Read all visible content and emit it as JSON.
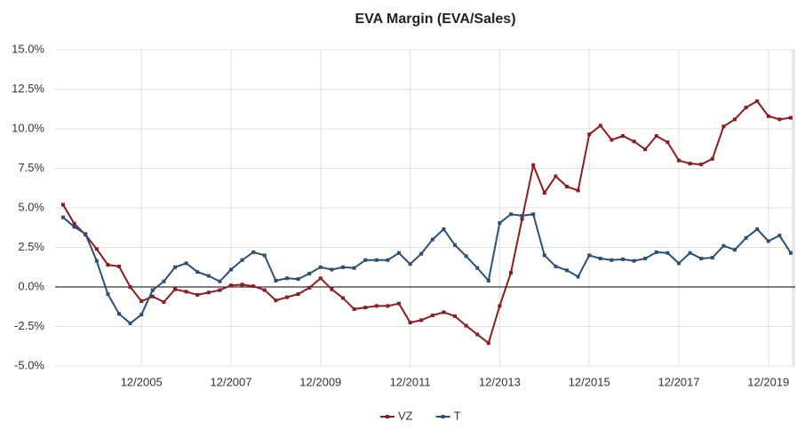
{
  "chart_data": {
    "type": "line",
    "title": "EVA Margin (EVA/Sales)",
    "categories": [
      null,
      null,
      null,
      null,
      null,
      null,
      null,
      "12/2005",
      null,
      null,
      null,
      null,
      null,
      null,
      null,
      "12/2007",
      null,
      null,
      null,
      null,
      null,
      null,
      null,
      "12/2009",
      null,
      null,
      null,
      null,
      null,
      null,
      null,
      "12/2011",
      null,
      null,
      null,
      null,
      null,
      null,
      null,
      "12/2013",
      null,
      null,
      null,
      null,
      null,
      null,
      null,
      "12/2015",
      null,
      null,
      null,
      null,
      null,
      null,
      null,
      "12/2017",
      null,
      null,
      null,
      null,
      null,
      null,
      null,
      "12/2019",
      null,
      null
    ],
    "series": [
      {
        "name": "VZ",
        "color": "#8c1c1f",
        "values": [
          5.2,
          4.0,
          3.3,
          2.4,
          1.4,
          1.3,
          0.0,
          -0.9,
          -0.6,
          -0.95,
          -0.15,
          -0.3,
          -0.5,
          -0.35,
          -0.2,
          0.1,
          0.15,
          0.05,
          -0.2,
          -0.85,
          -0.65,
          -0.45,
          -0.05,
          0.55,
          -0.15,
          -0.7,
          -1.4,
          -1.3,
          -1.2,
          -1.2,
          -1.05,
          -2.25,
          -2.1,
          -1.8,
          -1.6,
          -1.85,
          -2.45,
          -3.0,
          -3.55,
          -1.2,
          0.9,
          4.3,
          7.7,
          5.95,
          7.0,
          6.35,
          6.1,
          9.65,
          10.2,
          9.3,
          9.55,
          9.2,
          8.7,
          9.55,
          9.15,
          8.0,
          7.8,
          7.75,
          8.1,
          10.15,
          10.6,
          11.35,
          11.75,
          10.8,
          10.6,
          10.7
        ]
      },
      {
        "name": "T",
        "color": "#2b4f77",
        "values": [
          4.4,
          3.8,
          3.35,
          1.65,
          -0.45,
          -1.7,
          -2.3,
          -1.75,
          -0.2,
          0.35,
          1.25,
          1.5,
          0.95,
          0.7,
          0.35,
          1.1,
          1.7,
          2.2,
          2.0,
          0.4,
          0.55,
          0.5,
          0.85,
          1.25,
          1.1,
          1.25,
          1.2,
          1.7,
          1.7,
          1.7,
          2.15,
          1.45,
          2.1,
          3.0,
          3.65,
          2.65,
          1.95,
          1.2,
          0.4,
          4.05,
          4.6,
          4.5,
          4.6,
          2.0,
          1.3,
          1.05,
          0.65,
          2.0,
          1.8,
          1.7,
          1.75,
          1.65,
          1.8,
          2.2,
          2.15,
          1.5,
          2.15,
          1.8,
          1.85,
          2.6,
          2.35,
          3.1,
          3.65,
          2.9,
          3.25,
          2.15
        ]
      }
    ],
    "ylim": [
      -5,
      15
    ],
    "yticks": [
      {
        "value": -5,
        "label": "-5.0%"
      },
      {
        "value": -2.5,
        "label": "-2.5%"
      },
      {
        "value": 0,
        "label": "0.0%"
      },
      {
        "value": 2.5,
        "label": "2.5%"
      },
      {
        "value": 5,
        "label": "5.0%"
      },
      {
        "value": 7.5,
        "label": "7.5%"
      },
      {
        "value": 10,
        "label": "10.0%"
      },
      {
        "value": 12.5,
        "label": "12.5%"
      },
      {
        "value": 15,
        "label": "15.0%"
      }
    ],
    "grid": true,
    "legend": "bottom"
  }
}
